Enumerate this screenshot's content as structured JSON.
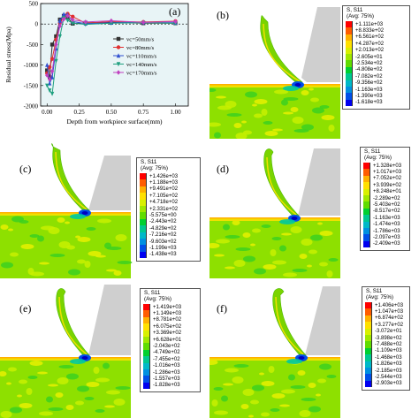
{
  "chart_data": {
    "type": "line",
    "panel_label": "(a)",
    "xlabel": "Depth from workpiece surface(mm)",
    "ylabel": "Residual stress(Mpa)",
    "xlim": [
      -0.05,
      1.1
    ],
    "ylim": [
      -2000,
      500
    ],
    "xticks": [
      "0.00",
      "0.25",
      "0.50",
      "0.75",
      "1.00"
    ],
    "yticks": [
      "500",
      "0",
      "-500",
      "-1000",
      "-1500",
      "-2000"
    ],
    "legend_position": "right",
    "series": [
      {
        "name": "vc=50mm/s",
        "color": "#333333",
        "marker": "square",
        "x": [
          0.0,
          0.02,
          0.04,
          0.07,
          0.1,
          0.13,
          0.16,
          0.2,
          0.3,
          0.5,
          0.75,
          1.0
        ],
        "y": [
          -1130,
          -1290,
          -500,
          -300,
          110,
          200,
          160,
          10,
          30,
          40,
          20,
          20
        ]
      },
      {
        "name": "vc=80mm/s",
        "color": "#e03030",
        "marker": "circle",
        "x": [
          0.0,
          0.02,
          0.04,
          0.07,
          0.1,
          0.13,
          0.16,
          0.2,
          0.3,
          0.5,
          0.75,
          1.0
        ],
        "y": [
          -1200,
          -1050,
          -850,
          -380,
          20,
          180,
          250,
          180,
          20,
          60,
          50,
          70
        ]
      },
      {
        "name": "vc=110mm/s",
        "color": "#3050d0",
        "marker": "triangle",
        "x": [
          0.0,
          0.02,
          0.04,
          0.07,
          0.1,
          0.13,
          0.16,
          0.2,
          0.3,
          0.5,
          0.75,
          1.0
        ],
        "y": [
          -1000,
          -1450,
          -1300,
          -600,
          80,
          240,
          230,
          60,
          10,
          30,
          40,
          30
        ]
      },
      {
        "name": "vc=140mm/s",
        "color": "#20a080",
        "marker": "triangle-down",
        "x": [
          0.0,
          0.02,
          0.04,
          0.07,
          0.1,
          0.13,
          0.16,
          0.2,
          0.3,
          0.5,
          0.75,
          1.0
        ],
        "y": [
          -1500,
          -1620,
          -1700,
          -900,
          -300,
          150,
          90,
          20,
          -10,
          20,
          30,
          20
        ]
      },
      {
        "name": "vc=170mm/s",
        "color": "#c040c0",
        "marker": "diamond",
        "x": [
          0.0,
          0.02,
          0.04,
          0.07,
          0.1,
          0.13,
          0.16,
          0.2,
          0.3,
          0.5,
          0.75,
          1.0
        ],
        "y": [
          -1250,
          -1350,
          -1150,
          -500,
          -50,
          120,
          200,
          100,
          50,
          80,
          40,
          60
        ]
      }
    ]
  },
  "contour_colors": [
    "#ff0000",
    "#ff5c00",
    "#ffb000",
    "#ffe000",
    "#d8f000",
    "#a0e800",
    "#60dc00",
    "#00d030",
    "#00c890",
    "#00b8c8",
    "#0090e0",
    "#0050e8",
    "#0000f0"
  ],
  "panels": [
    {
      "label": "(b)",
      "title": "S, S11\n(Avg: 75%)",
      "values": [
        "+1.111e+03",
        "+8.833e+02",
        "+6.561e+02",
        "+4.287e+02",
        "+2.013e+02",
        "-2.605e+01",
        "-2.534e+02",
        "-4.808e+02",
        "-7.082e+02",
        "-9.356e+02",
        "-1.163e+03",
        "-1.390e+03",
        "-1.618e+03"
      ]
    },
    {
      "label": "(c)",
      "title": "S, S11\n(Avg: 75%)",
      "values": [
        "+1.426e+03",
        "+1.188e+03",
        "+9.491e+02",
        "+7.105e+02",
        "+4.718e+02",
        "+2.331e+02",
        "-5.575e+00",
        "-2.443e+02",
        "-4.829e+02",
        "-7.216e+02",
        "-9.603e+02",
        "-1.199e+03",
        "-1.438e+03"
      ]
    },
    {
      "label": "(d)",
      "title": "S, S11\n(Avg: 75%)",
      "values": [
        "+1.328e+03",
        "+1.017e+03",
        "+7.052e+02",
        "+3.939e+02",
        "+8.248e+01",
        "-2.289e+02",
        "-5.403e+02",
        "-8.517e+02",
        "-1.163e+03",
        "-1.474e+03",
        "-1.786e+03",
        "-2.097e+03",
        "-2.409e+03"
      ]
    },
    {
      "label": "(e)",
      "title": "S, S11\n(Avg: 75%)",
      "values": [
        "+1.419e+03",
        "+1.149e+03",
        "+8.781e+02",
        "+6.075e+02",
        "+3.369e+02",
        "+6.628e+01",
        "-2.043e+02",
        "-4.749e+02",
        "-7.455e+02",
        "-1.016e+03",
        "-1.286e+03",
        "-1.557e+03",
        "-1.828e+03"
      ]
    },
    {
      "label": "(f)",
      "title": "S, S11\n(Avg: 75%)",
      "values": [
        "+1.406e+03",
        "+1.047e+03",
        "+6.874e+02",
        "+3.277e+02",
        "-3.072e+01",
        "-3.898e+02",
        "-7.488e+02",
        "-1.109e+03",
        "-1.468e+03",
        "-1.826e+03",
        "-2.185e+03",
        "-2.544e+03",
        "-2.903e+03"
      ]
    }
  ]
}
